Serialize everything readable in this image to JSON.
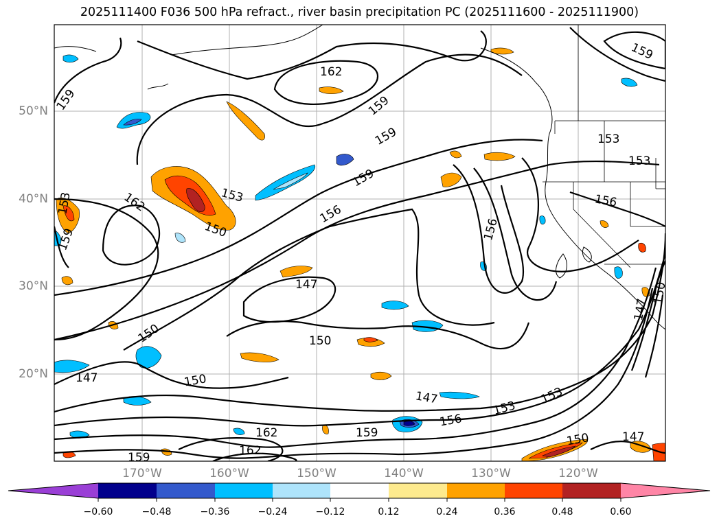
{
  "title": "2025111400 F036 500 hPa refract., river basin precipitation PC (2025111600 - 2025111900)",
  "latitude_labels": [
    "50°N",
    "40°N",
    "30°N",
    "20°N"
  ],
  "longitude_labels": [
    "170°W",
    "160°W",
    "150°W",
    "140°W",
    "130°W",
    "120°W"
  ],
  "contour_labels": [
    "162",
    "159",
    "159",
    "159",
    "159",
    "159",
    "153",
    "150",
    "162",
    "153",
    "153",
    "153",
    "156",
    "156",
    "156",
    "147",
    "150",
    "150",
    "147",
    "147",
    "153",
    "153",
    "156",
    "159",
    "162",
    "162",
    "150",
    "147",
    "159",
    "159",
    "147",
    "150",
    "150"
  ],
  "colorbar": {
    "tick_labels": [
      "−0.60",
      "−0.48",
      "−0.36",
      "−0.24",
      "−0.12",
      "0.12",
      "0.24",
      "0.36",
      "0.48",
      "0.60"
    ],
    "colors": [
      "#9a3fd6",
      "#02008c",
      "#3359cc",
      "#00bfff",
      "#aee4fb",
      "#ffffff",
      "#fdea8e",
      "#ffa200",
      "#ff4400",
      "#b22222",
      "#ff85a6"
    ]
  },
  "colors": {
    "negative_strong": "#3359cc",
    "negative_medium": "#00bfff",
    "negative_light": "#aee4fb",
    "positive_light": "#fdea8e",
    "positive_medium": "#ffa200",
    "positive_strong": "#ff4400",
    "positive_max": "#b22222"
  }
}
